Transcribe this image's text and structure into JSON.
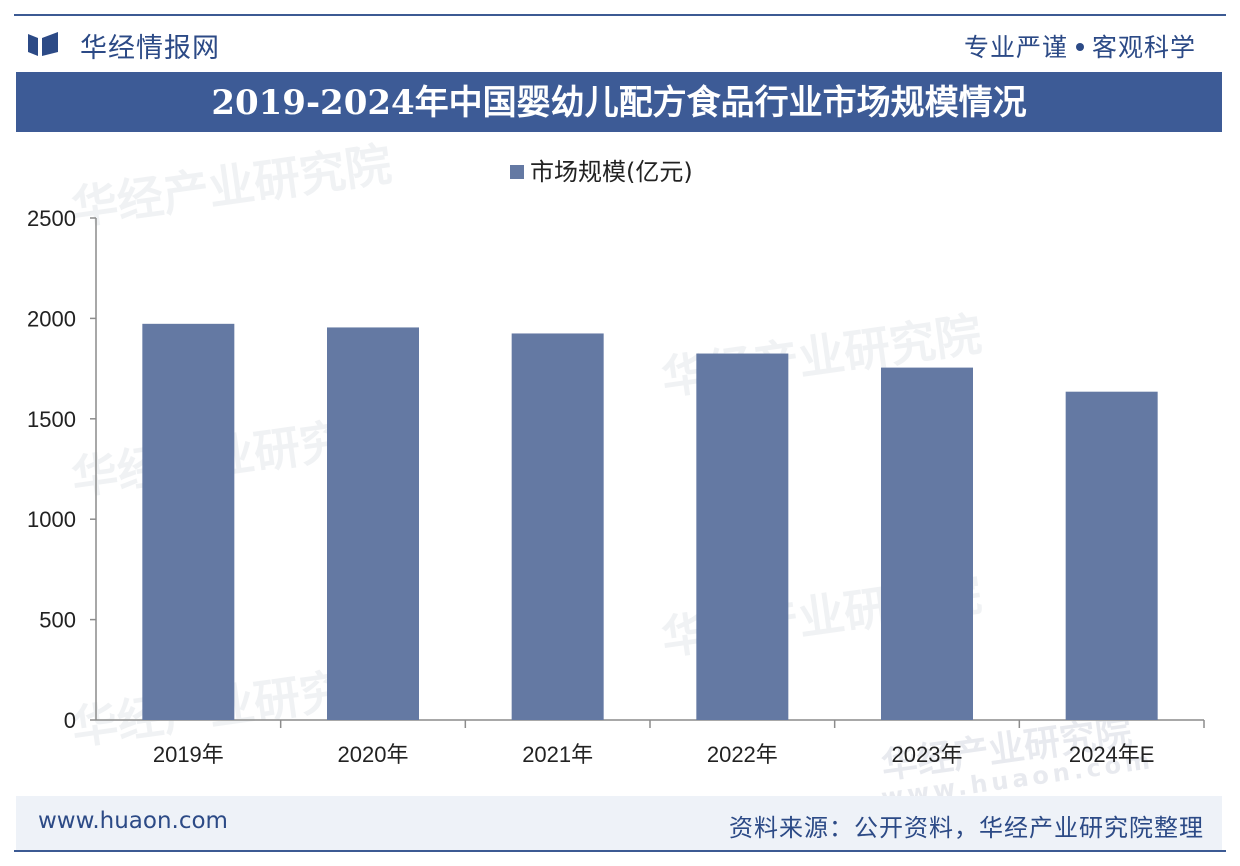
{
  "header": {
    "brand": "华经情报网",
    "slogan_left": "专业严谨",
    "slogan_right": "客观科学"
  },
  "chart_title": "2019-2024年中国婴幼儿配方食品行业市场规模情况",
  "footer": {
    "url": "www.huaon.com",
    "source": "资料来源：公开资料，华经产业研究院整理"
  },
  "watermark": {
    "name": "华经产业研究院",
    "url": "www.huaon.com"
  },
  "colors": {
    "bar": "#6479a3",
    "header": "#3d5b96",
    "text_dark": "#2c4a86"
  },
  "chart_data": {
    "type": "bar",
    "categories": [
      "2019年",
      "2020年",
      "2021年",
      "2022年",
      "2023年",
      "2024年E"
    ],
    "series": [
      {
        "name": "市场规模(亿元)",
        "values": [
          1973,
          1955,
          1925,
          1825,
          1755,
          1635
        ]
      }
    ],
    "ylim": [
      0,
      2500
    ],
    "yticks": [
      0,
      500,
      1000,
      1500,
      2000,
      2500
    ],
    "legend_position": "top-center",
    "grid": false
  }
}
